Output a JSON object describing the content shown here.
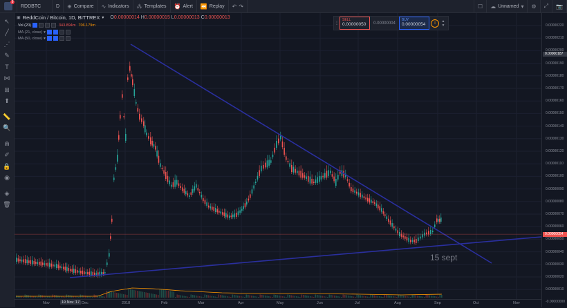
{
  "topbar": {
    "symbol": "RDDBTC",
    "interval": "D",
    "compare": "Compare",
    "indicators": "Indicators",
    "templates": "Templates",
    "alert": "Alert",
    "replay": "Replay",
    "layout_name": "Unnamed",
    "notification_count": "9"
  },
  "legend": {
    "title": "ReddCoin / Bitcoin, 1D, BITTREX",
    "o_label": "O",
    "o_value": "0.00000014",
    "h_label": "H",
    "h_value": "0.00000015",
    "l_label": "L",
    "l_value": "0.00000013",
    "c_label": "C",
    "c_value": "0.00000013"
  },
  "indicators": [
    {
      "name": "Vol (20)",
      "value1": "343.894m",
      "value2": "706.179m"
    },
    {
      "name": "MA (21, close)",
      "value1": "",
      "value2": ""
    },
    {
      "name": "MA (50, close)",
      "value1": "",
      "value2": ""
    }
  ],
  "trade_panel": {
    "sell_label": "SELL",
    "sell_value": "0.00000050",
    "spread": "0.00000004",
    "buy_label": "BUY",
    "buy_value": "0.00000054"
  },
  "price_axis": {
    "ticks": [
      "0.00000220",
      "0.00000210",
      "0.00000200",
      "0.00000190",
      "0.00000180",
      "0.00000170",
      "0.00000160",
      "0.00000150",
      "0.00000140",
      "0.00000130",
      "0.00000120",
      "0.00000110",
      "0.00000100",
      "0.00000090",
      "0.00000080",
      "0.00000070",
      "0.00000060",
      "0.00000050",
      "0.00000040",
      "0.00000030",
      "0.00000020",
      "0.00000010",
      "-0.00000000"
    ],
    "crosshair_label": "0.00000187",
    "current_price": "0.00000054"
  },
  "time_axis": {
    "ticks": [
      "Nov",
      "Dec",
      "2018",
      "Feb",
      "Mar",
      "Apr",
      "May",
      "Jun",
      "Jul",
      "Aug",
      "Sep",
      "Oct",
      "Nov"
    ],
    "highlight": "19 Nov '17"
  },
  "annotation": "15 sept",
  "colors": {
    "up": "#26a69a",
    "down": "#ef5350",
    "trendline": "#2a2f9e",
    "volume_ma": "#ff9800",
    "background": "#131722"
  },
  "chart_data": {
    "type": "candlestick",
    "symbol": "RDDBTC",
    "exchange": "BITTREX",
    "interval": "1D",
    "x": [
      "2017-10",
      "2017-11",
      "2017-12",
      "2018-01",
      "2018-02",
      "2018-03",
      "2018-04",
      "2018-05",
      "2018-06",
      "2018-07",
      "2018-08",
      "2018-09"
    ],
    "close": [
      2e-07,
      1.7e-07,
      5.5e-07,
      1.4e-06,
      7.5e-07,
      6.2e-07,
      5.8e-07,
      1e-06,
      8.5e-07,
      7e-07,
      3.8e-07,
      5.4e-07
    ],
    "ylim": [
      -1e-08,
      2.25e-06
    ],
    "grid": true
  }
}
